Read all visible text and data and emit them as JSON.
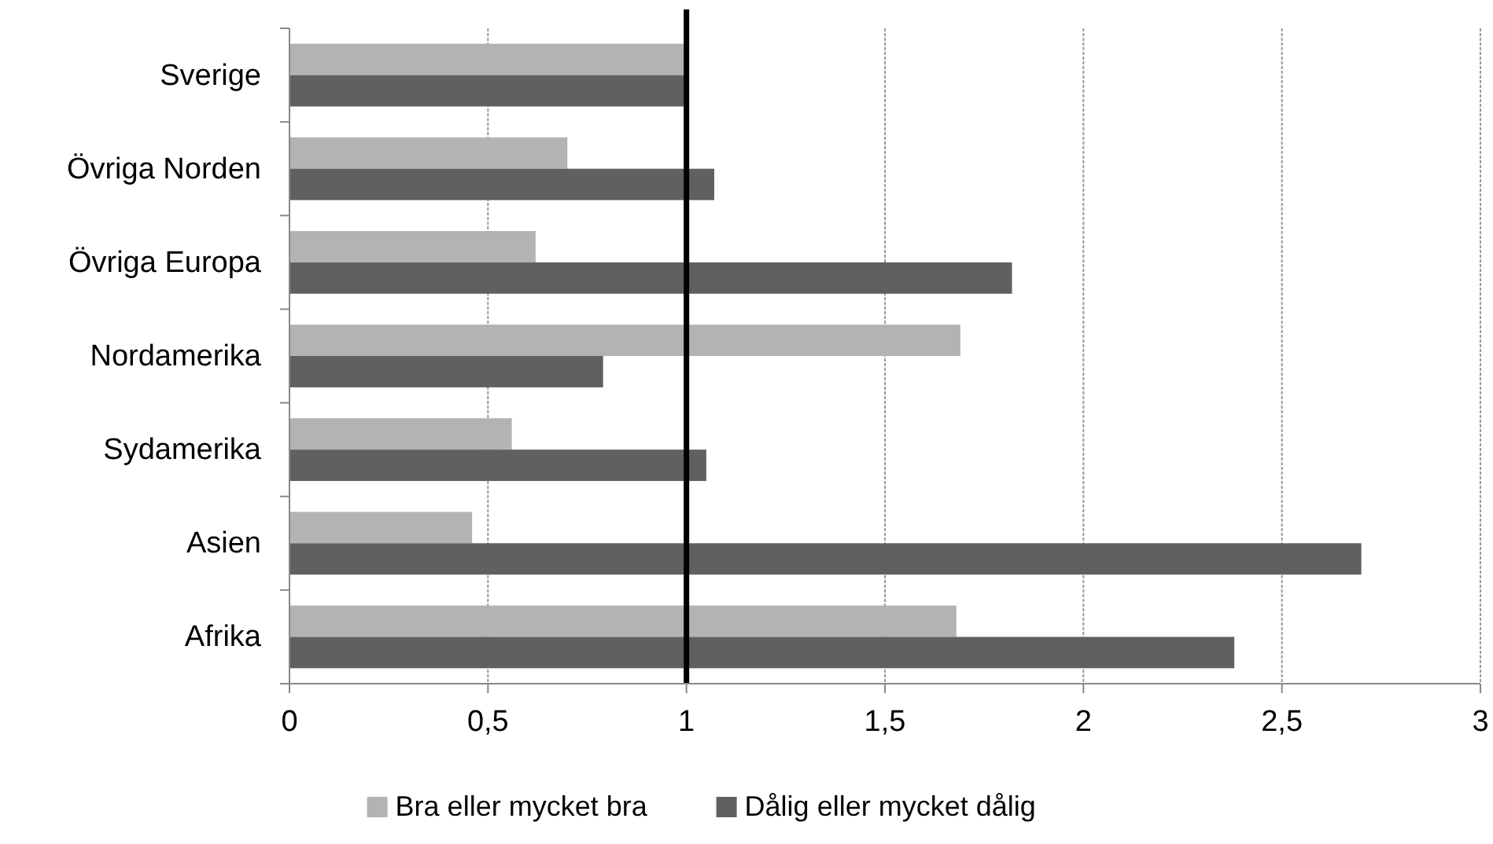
{
  "chart_data": {
    "type": "bar",
    "orientation": "horizontal",
    "categories": [
      "Sverige",
      "Övriga Norden",
      "Övriga Europa",
      "Nordamerika",
      "Sydamerika",
      "Asien",
      "Afrika"
    ],
    "series": [
      {
        "name": "Bra eller mycket bra",
        "color": "#b3b3b3",
        "values": [
          1.0,
          0.7,
          0.62,
          1.69,
          0.56,
          0.46,
          1.68
        ]
      },
      {
        "name": "Dålig eller mycket dålig",
        "color": "#606060",
        "values": [
          1.0,
          1.07,
          1.82,
          0.79,
          1.05,
          2.7,
          2.38
        ]
      }
    ],
    "xlim": [
      0,
      3
    ],
    "xticks": [
      0,
      {
        "value": 0.5,
        "label": "0,5"
      },
      1,
      {
        "value": 1.5,
        "label": "1,5"
      },
      2,
      {
        "value": 2.5,
        "label": "2,5"
      },
      3
    ],
    "grid": "x",
    "legend": "bottom",
    "ref_lines": [
      {
        "axis": "x",
        "value": 1,
        "color": "#000000"
      }
    ]
  }
}
